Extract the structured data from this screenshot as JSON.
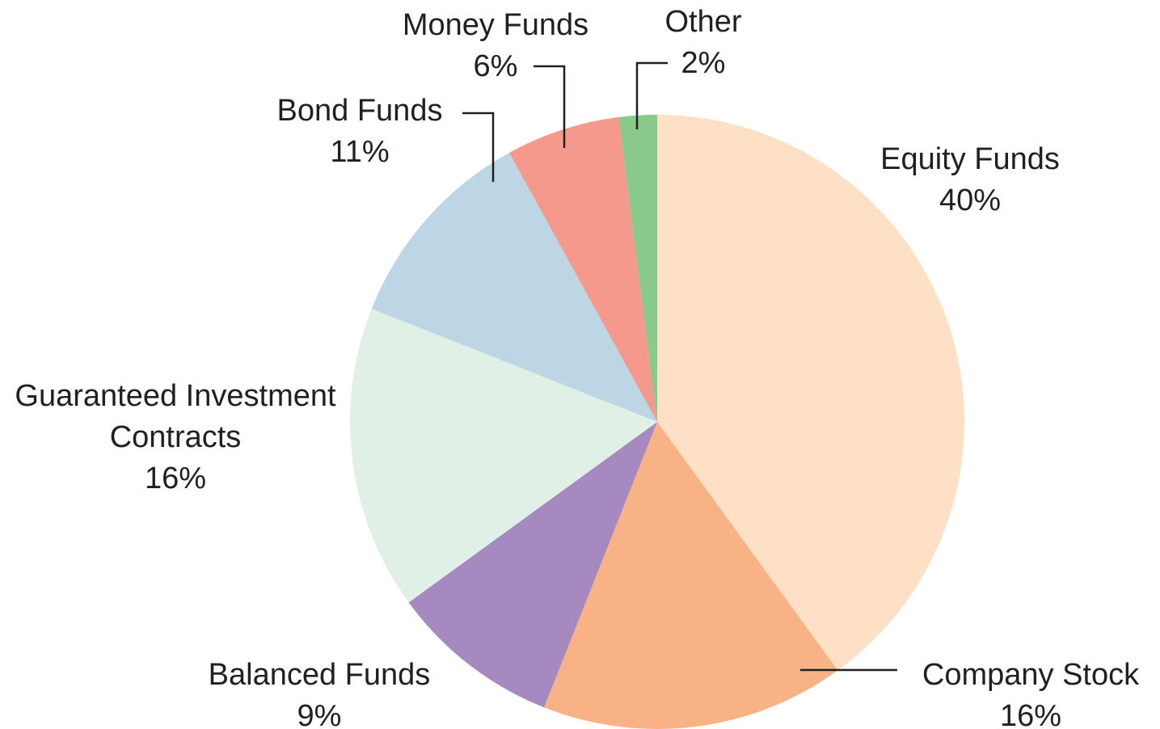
{
  "chart_data": {
    "type": "pie",
    "categories": [
      "Equity Funds",
      "Company Stock",
      "Balanced Funds",
      "Guaranteed Investment Contracts",
      "Bond Funds",
      "Money Funds",
      "Other"
    ],
    "values": [
      40,
      16,
      9,
      16,
      11,
      6,
      2
    ],
    "value_labels": [
      "40%",
      "16%",
      "9%",
      "16%",
      "11%",
      "6%",
      "2%"
    ],
    "colors": [
      "#fde0c5",
      "#f9b286",
      "#a589bf",
      "#e1f0e6",
      "#bcd6e5",
      "#f4998c",
      "#89c98a"
    ]
  }
}
